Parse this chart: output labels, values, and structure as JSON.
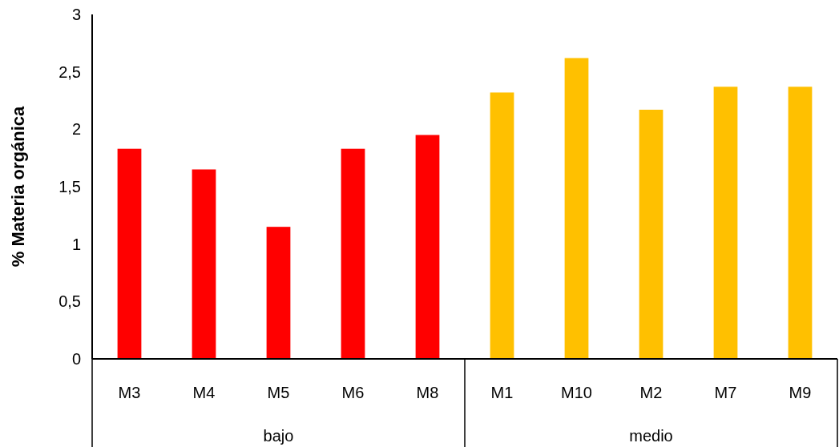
{
  "chart_data": {
    "type": "bar",
    "ylabel": "% Materia orgánica",
    "categories": [
      "M3",
      "M4",
      "M5",
      "M6",
      "M8",
      "M1",
      "M10",
      "M2",
      "M7",
      "M9"
    ],
    "values": [
      1.83,
      1.65,
      1.15,
      1.83,
      1.95,
      2.32,
      2.62,
      2.17,
      2.37,
      2.37
    ],
    "colors": [
      "#ff0000",
      "#ff0000",
      "#ff0000",
      "#ff0000",
      "#ff0000",
      "#ffc000",
      "#ffc000",
      "#ffc000",
      "#ffc000",
      "#ffc000"
    ],
    "annotations": [
      "bajo",
      "medio"
    ],
    "ylim": [
      0,
      3
    ],
    "yticks": [
      0,
      {
        "value": 0.5,
        "label": "0,5"
      },
      1,
      {
        "value": 1.5,
        "label": "1,5"
      },
      2,
      {
        "value": 2.5,
        "label": "2,5"
      },
      3
    ],
    "grid": false
  }
}
